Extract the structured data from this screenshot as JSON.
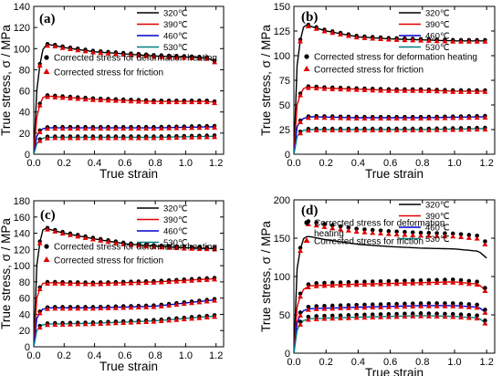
{
  "chart_data": [
    {
      "type": "line",
      "panel_label": "(a)",
      "xlabel": "True strain",
      "ylabel": "True stress, σ / MPa",
      "xlim": [
        0,
        1.25
      ],
      "ylim": [
        0,
        140
      ],
      "xticks": [
        "0.0",
        "0.2",
        "0.4",
        "0.6",
        "0.8",
        "1.0",
        "1.2"
      ],
      "yticks": [
        "0",
        "20",
        "40",
        "60",
        "80",
        "100",
        "120",
        "140"
      ],
      "legend": [
        "320℃",
        "390℃",
        "460℃",
        "530℃"
      ],
      "marker_legend": [
        "Corrected stress for deformation heating",
        "Corrected  stress for friction"
      ],
      "series": [
        {
          "name": "320℃",
          "color": "#000000",
          "x": [
            0,
            0.02,
            0.05,
            0.08,
            0.1,
            0.2,
            0.4,
            0.6,
            0.8,
            1.0,
            1.15,
            1.2
          ],
          "values": [
            0,
            60,
            97,
            103,
            104,
            101,
            97,
            95,
            93,
            92,
            91,
            87
          ]
        },
        {
          "name": "390℃",
          "color": "#e00000",
          "x": [
            0,
            0.02,
            0.05,
            0.08,
            0.1,
            0.2,
            0.4,
            0.6,
            0.8,
            1.0,
            1.15,
            1.2
          ],
          "values": [
            0,
            35,
            53,
            55,
            55,
            54,
            52,
            51,
            50,
            50,
            50,
            49
          ]
        },
        {
          "name": "460℃",
          "color": "#0000cc",
          "x": [
            0,
            0.02,
            0.05,
            0.1,
            0.4,
            0.8,
            1.2
          ],
          "values": [
            0,
            17,
            24,
            25,
            25,
            25,
            26
          ]
        },
        {
          "name": "530℃",
          "color": "#008080",
          "x": [
            0,
            0.02,
            0.05,
            0.1,
            0.4,
            0.8,
            1.2
          ],
          "values": [
            0,
            10,
            15,
            16,
            16,
            16,
            17
          ]
        }
      ]
    },
    {
      "type": "line",
      "panel_label": "(b)",
      "xlabel": "True strain",
      "ylabel": "True stress, σ / MPa",
      "xlim": [
        0,
        1.25
      ],
      "ylim": [
        0,
        150
      ],
      "xticks": [
        "0.0",
        "0.2",
        "0.4",
        "0.6",
        "0.8",
        "1.0",
        "1.2"
      ],
      "yticks": [
        "0",
        "25",
        "50",
        "75",
        "100",
        "125",
        "150"
      ],
      "legend": [
        "320℃",
        "390℃",
        "460℃",
        "530℃"
      ],
      "marker_legend": [
        "Corrected  stress for deformation heating",
        "Corrected  stress for friction"
      ],
      "series": [
        {
          "name": "320℃",
          "color": "#000000",
          "x": [
            0,
            0.02,
            0.05,
            0.08,
            0.1,
            0.2,
            0.4,
            0.6,
            0.8,
            1.0,
            1.2
          ],
          "values": [
            0,
            90,
            128,
            131,
            130,
            125,
            119,
            117,
            116,
            115,
            115
          ]
        },
        {
          "name": "390℃",
          "color": "#e00000",
          "x": [
            0,
            0.02,
            0.05,
            0.08,
            0.1,
            0.2,
            0.4,
            0.6,
            0.8,
            1.0,
            1.2
          ],
          "values": [
            0,
            50,
            66,
            68,
            68,
            67,
            66,
            65,
            65,
            64,
            64
          ]
        },
        {
          "name": "460℃",
          "color": "#0000cc",
          "x": [
            0,
            0.02,
            0.05,
            0.1,
            0.4,
            0.8,
            1.2
          ],
          "values": [
            0,
            28,
            36,
            38,
            37,
            37,
            38
          ]
        },
        {
          "name": "530℃",
          "color": "#008080",
          "x": [
            0,
            0.02,
            0.05,
            0.1,
            0.4,
            0.8,
            1.2
          ],
          "values": [
            0,
            18,
            24,
            25,
            25,
            25,
            26
          ]
        }
      ]
    },
    {
      "type": "line",
      "panel_label": "(c)",
      "xlabel": "True strain",
      "ylabel": "True stress, σ / MPa",
      "xlim": [
        0,
        1.25
      ],
      "ylim": [
        0,
        180
      ],
      "xticks": [
        "0.0",
        "0.2",
        "0.4",
        "0.6",
        "0.8",
        "1.0",
        "1.2"
      ],
      "yticks": [
        "0",
        "20",
        "40",
        "60",
        "80",
        "100",
        "120",
        "140",
        "160",
        "180"
      ],
      "legend": [
        "320℃",
        "390℃",
        "460℃",
        "530℃"
      ],
      "marker_legend": [
        "Corrected  stress for deformation heating",
        "Corrected  stress for friction"
      ],
      "series": [
        {
          "name": "320℃",
          "color": "#000000",
          "x": [
            0,
            0.02,
            0.05,
            0.08,
            0.1,
            0.2,
            0.4,
            0.6,
            0.8,
            1.0,
            1.2
          ],
          "values": [
            0,
            100,
            143,
            146,
            145,
            140,
            133,
            127,
            124,
            122,
            121
          ]
        },
        {
          "name": "390℃",
          "color": "#e00000",
          "x": [
            0,
            0.02,
            0.05,
            0.1,
            0.4,
            0.8,
            1.0,
            1.2
          ],
          "values": [
            0,
            60,
            78,
            79,
            78,
            80,
            82,
            84
          ]
        },
        {
          "name": "460℃",
          "color": "#0000cc",
          "x": [
            0,
            0.02,
            0.05,
            0.1,
            0.4,
            0.8,
            1.0,
            1.2
          ],
          "values": [
            0,
            35,
            46,
            48,
            48,
            50,
            54,
            58
          ]
        },
        {
          "name": "530℃",
          "color": "#008080",
          "x": [
            0,
            0.02,
            0.05,
            0.1,
            0.4,
            0.8,
            1.0,
            1.2
          ],
          "values": [
            0,
            20,
            27,
            28,
            29,
            32,
            35,
            38
          ]
        }
      ]
    },
    {
      "type": "line",
      "panel_label": "(d)",
      "xlabel": "True strain",
      "ylabel": "True stress, σ / MPa",
      "xlim": [
        0,
        1.25
      ],
      "ylim": [
        0,
        200
      ],
      "xticks": [
        "0.0",
        "0.2",
        "0.4",
        "0.6",
        "0.8",
        "1.0",
        "1.2"
      ],
      "yticks": [
        "0",
        "50",
        "100",
        "150",
        "200"
      ],
      "legend": [
        "320℃",
        "390℃",
        "460℃",
        "530℃"
      ],
      "marker_legend": [
        "Corrected  stress for deformation heating",
        "Corrected  stress for friction"
      ],
      "series": [
        {
          "name": "320℃",
          "color": "#000000",
          "x": [
            0,
            0.02,
            0.05,
            0.08,
            0.1,
            0.2,
            0.4,
            0.6,
            0.8,
            1.0,
            1.15,
            1.2
          ],
          "values": [
            0,
            110,
            148,
            152,
            152,
            148,
            142,
            139,
            137,
            136,
            133,
            124
          ]
        },
        {
          "name": "390℃",
          "color": "#e00000",
          "x": [
            0,
            0.02,
            0.05,
            0.1,
            0.4,
            0.8,
            1.0,
            1.15,
            1.2
          ],
          "values": [
            0,
            60,
            82,
            88,
            90,
            92,
            93,
            90,
            80
          ]
        },
        {
          "name": "460℃",
          "color": "#0000cc",
          "x": [
            0,
            0.02,
            0.05,
            0.1,
            0.4,
            0.8,
            1.0,
            1.15,
            1.2
          ],
          "values": [
            0,
            40,
            55,
            58,
            60,
            62,
            62,
            60,
            52
          ]
        },
        {
          "name": "530℃",
          "color": "#008080",
          "x": [
            0,
            0.02,
            0.05,
            0.1,
            0.4,
            0.8,
            1.0,
            1.15,
            1.2
          ],
          "values": [
            0,
            30,
            42,
            45,
            47,
            49,
            48,
            46,
            38
          ]
        }
      ],
      "marker_series": [
        {
          "name": "Corrected  stress for deformation heating",
          "x": [
            0.05,
            0.1,
            0.4,
            0.8,
            1.0,
            1.2
          ],
          "values": [
            150,
            158,
            165,
            168,
            166,
            160
          ]
        }
      ]
    }
  ],
  "panels_meta": {
    "a": {
      "legend_heating": "Corrected stress for deformation heating",
      "legend_friction": "Corrected  stress for friction"
    },
    "b": {
      "legend_heating": "Corrected  stress for deformation heating",
      "legend_friction": "Corrected  stress for friction"
    },
    "c": {
      "legend_heating": "Corrected  stress for deformation heating",
      "legend_friction": "Corrected  stress for friction"
    },
    "d": {
      "legend_heating_1": "Corrected  stress for deformation",
      "legend_heating_2": "heating",
      "legend_friction": "Corrected  stress for friction"
    }
  }
}
